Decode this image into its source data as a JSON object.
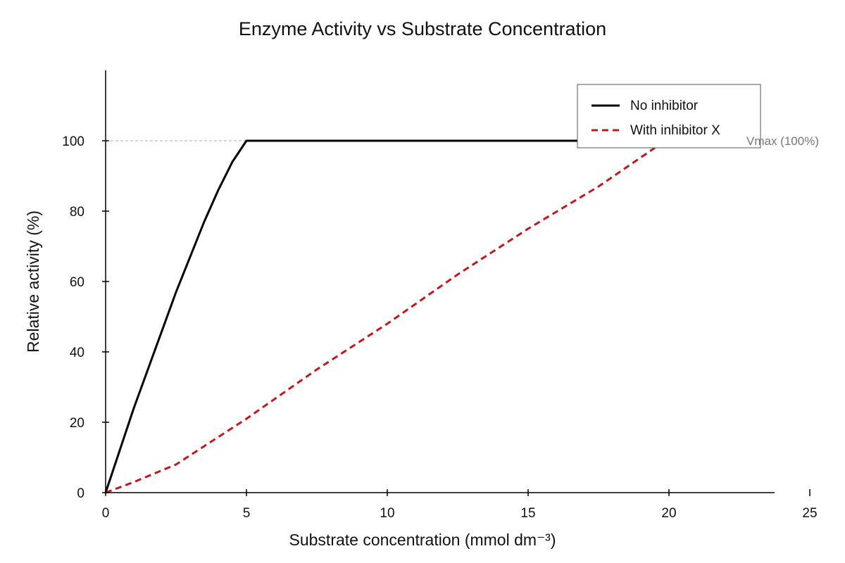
{
  "chart_data": {
    "type": "line",
    "title": "Enzyme Activity vs Substrate Concentration",
    "xlabel": "Substrate concentration (mmol dm⁻³)",
    "ylabel": "Relative activity (%)",
    "xlim": [
      0,
      25
    ],
    "ylim": [
      0,
      120
    ],
    "x_ticks": [
      0,
      5,
      10,
      15,
      20,
      25
    ],
    "y_ticks": [
      0,
      20,
      40,
      60,
      80,
      100
    ],
    "grid": false,
    "legend_position": "top-right",
    "reference_line": {
      "y": 100,
      "label": "Vmax (100%)",
      "style": "dashed",
      "color": "#aaaaaa"
    },
    "series": [
      {
        "name": "No inhibitor",
        "color": "#000000",
        "style": "solid",
        "x": [
          0,
          0.5,
          1,
          1.5,
          2,
          2.5,
          3,
          3.5,
          4,
          4.5,
          5,
          10,
          15,
          19.7
        ],
        "y": [
          0,
          12,
          24,
          35,
          46,
          57,
          67,
          77,
          86,
          94,
          100,
          100,
          100,
          100
        ]
      },
      {
        "name": "With inhibitor X",
        "color": "#c0181c",
        "style": "dashed",
        "x": [
          0,
          1,
          2.5,
          5,
          7.5,
          10,
          12.5,
          15,
          17.5,
          19.5
        ],
        "y": [
          0,
          3,
          8,
          21,
          35,
          48,
          62,
          75,
          87,
          98
        ]
      }
    ]
  }
}
